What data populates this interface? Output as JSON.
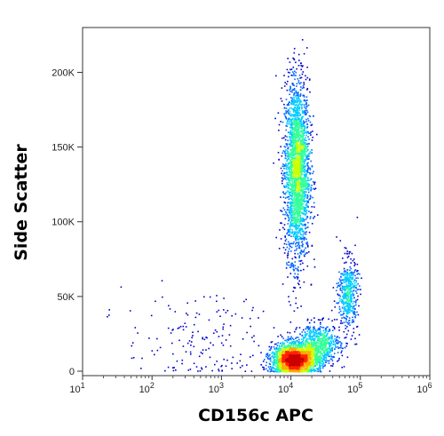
{
  "chart_data": {
    "type": "scatter",
    "style": "density-colored flow cytometry dot plot",
    "xlabel": "CD156c APC",
    "ylabel": "Side Scatter",
    "x_scale": "log",
    "xlim": [
      10,
      1000000
    ],
    "ylim": [
      0,
      230000
    ],
    "x_ticks": [
      {
        "value": 10,
        "base": "10",
        "exp": "1"
      },
      {
        "value": 100,
        "base": "10",
        "exp": "2"
      },
      {
        "value": 1000,
        "base": "10",
        "exp": "3"
      },
      {
        "value": 10000,
        "base": "10",
        "exp": "4"
      },
      {
        "value": 100000,
        "base": "10",
        "exp": "5"
      },
      {
        "value": 1000000,
        "base": "10",
        "exp": "6"
      }
    ],
    "y_ticks": [
      {
        "value": 0,
        "label": "0"
      },
      {
        "value": 50000,
        "label": "50K"
      },
      {
        "value": 100000,
        "label": "100K"
      },
      {
        "value": 150000,
        "label": "150K"
      },
      {
        "value": 200000,
        "label": "200K"
      }
    ],
    "populations": [
      {
        "x_center": 12000,
        "x_log_sd": 0.09,
        "y_center": 135000,
        "y_sd": 30000,
        "count": 2600
      },
      {
        "x_center": 11000,
        "x_log_sd": 0.16,
        "y_center": 8000,
        "y_sd": 5500,
        "count": 2200
      },
      {
        "x_center": 25000,
        "x_log_sd": 0.15,
        "y_center": 18000,
        "y_sd": 7000,
        "count": 700
      },
      {
        "x_center": 65000,
        "x_log_sd": 0.07,
        "y_center": 52000,
        "y_sd": 12000,
        "count": 500
      },
      {
        "x_center": 500,
        "x_log_sd": 0.55,
        "y_center": 20000,
        "y_sd": 16000,
        "count": 170
      }
    ],
    "density_colors": [
      "#0000cc",
      "#0066ff",
      "#00ccff",
      "#33ff99",
      "#ccff00",
      "#ffaa00",
      "#ff2200",
      "#cc0000"
    ],
    "grid": false
  }
}
